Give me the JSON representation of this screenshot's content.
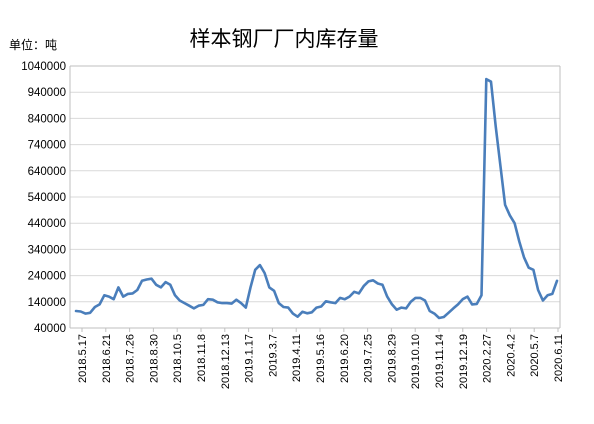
{
  "chart_data": {
    "type": "line",
    "title": "样本钢厂厂内库存量",
    "unit_label": "单位：吨",
    "ylim": [
      40000,
      1040000
    ],
    "yticks": [
      40000,
      140000,
      240000,
      340000,
      440000,
      540000,
      640000,
      740000,
      840000,
      940000,
      1040000
    ],
    "ytick_labels": [
      "40000",
      "140000",
      "240000",
      "340000",
      "440000",
      "540000",
      "640000",
      "740000",
      "840000",
      "940000",
      "1040000"
    ],
    "xtick_labels": [
      "2018.5.17",
      "2018.6.21",
      "2018.7.26",
      "2018.8.30",
      "2018.10.5",
      "2018.11.8",
      "2018.12.13",
      "2019.1.17",
      "2019.3.7",
      "2019.4.11",
      "2019.5.16",
      "2019.6.20",
      "2019.7.25",
      "2019.8.29",
      "2019.10.10",
      "2019.11.14",
      "2019.12.19",
      "2020.2.27",
      "2020.4.2",
      "2020.5.7",
      "2020.6.11"
    ],
    "grid": true,
    "legend": "none",
    "line_color": "#4a7ebb",
    "series": [
      {
        "values": [
          105000,
          103000,
          95000,
          98000,
          120000,
          130000,
          165000,
          160000,
          150000,
          195000,
          160000,
          170000,
          172000,
          185000,
          220000,
          225000,
          228000,
          205000,
          195000,
          215000,
          205000,
          165000,
          145000,
          135000,
          125000,
          115000,
          125000,
          128000,
          150000,
          148000,
          138000,
          135000,
          135000,
          133000,
          148000,
          135000,
          118000,
          195000,
          262000,
          280000,
          250000,
          195000,
          182000,
          135000,
          120000,
          118000,
          95000,
          83000,
          102000,
          96000,
          100000,
          118000,
          122000,
          142000,
          138000,
          135000,
          155000,
          150000,
          160000,
          178000,
          172000,
          200000,
          218000,
          222000,
          210000,
          205000,
          160000,
          130000,
          110000,
          118000,
          115000,
          140000,
          155000,
          155000,
          145000,
          105000,
          95000,
          78000,
          82000,
          98000,
          115000,
          130000,
          150000,
          160000,
          130000,
          132000,
          165000,
          990000,
          980000,
          810000,
          660000,
          510000,
          470000,
          440000,
          370000,
          310000,
          270000,
          262000,
          185000,
          145000,
          165000,
          170000,
          220000
        ]
      }
    ]
  }
}
